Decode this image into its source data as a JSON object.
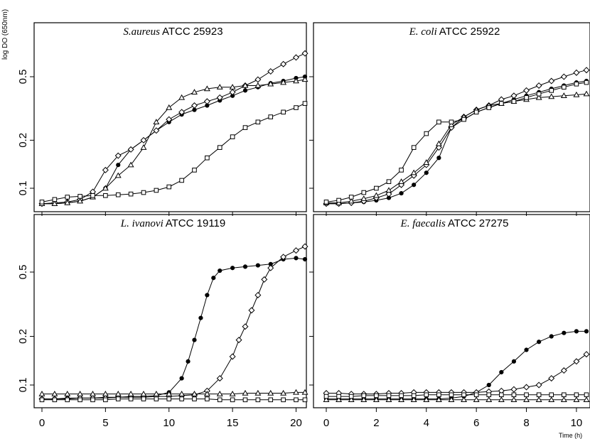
{
  "y_axis_label": "log DO (650nm)",
  "x_axis_unit_label": "Time (h)",
  "chart_data": [
    {
      "type": "line",
      "title_species": "S.aureus",
      "title_strain": "ATCC 25923",
      "y_scale": "log",
      "xlim": [
        0,
        20.7
      ],
      "ylim": [
        0.075,
        0.8
      ],
      "xticks": [
        0,
        5,
        10,
        15,
        20
      ],
      "yticks": [
        0.1,
        0.2,
        0.5
      ],
      "ytick_labels": [
        "0.1",
        "0.2",
        "0.5"
      ],
      "series": [
        {
          "marker": "filled-circle",
          "x": [
            0,
            1,
            2,
            3,
            4,
            5,
            6,
            7,
            8,
            9,
            10,
            11,
            12,
            13,
            14,
            15,
            16,
            17,
            18,
            19,
            20,
            20.7
          ],
          "y": [
            0.08,
            0.08,
            0.081,
            0.083,
            0.088,
            0.1,
            0.14,
            0.175,
            0.2,
            0.23,
            0.26,
            0.29,
            0.31,
            0.33,
            0.355,
            0.38,
            0.41,
            0.43,
            0.455,
            0.47,
            0.49,
            0.5
          ]
        },
        {
          "marker": "open-diamond",
          "x": [
            0,
            1,
            2,
            3,
            4,
            5,
            6,
            7,
            8,
            9,
            10,
            11,
            12,
            13,
            14,
            15,
            16,
            17,
            18,
            19,
            20,
            20.7
          ],
          "y": [
            0.08,
            0.081,
            0.082,
            0.085,
            0.095,
            0.13,
            0.16,
            0.175,
            0.2,
            0.23,
            0.27,
            0.3,
            0.33,
            0.35,
            0.37,
            0.4,
            0.44,
            0.48,
            0.54,
            0.6,
            0.66,
            0.7
          ]
        },
        {
          "marker": "open-triangle",
          "x": [
            0,
            1,
            2,
            3,
            4,
            5,
            6,
            7,
            8,
            9,
            10,
            11,
            12,
            13,
            14,
            15,
            16,
            17,
            18,
            19,
            20,
            20.7
          ],
          "y": [
            0.08,
            0.08,
            0.081,
            0.083,
            0.088,
            0.1,
            0.12,
            0.14,
            0.18,
            0.26,
            0.32,
            0.37,
            0.4,
            0.42,
            0.43,
            0.43,
            0.44,
            0.44,
            0.45,
            0.46,
            0.47,
            0.48
          ]
        },
        {
          "marker": "open-square",
          "x": [
            0,
            1,
            2,
            3,
            4,
            5,
            6,
            7,
            8,
            9,
            10,
            11,
            12,
            13,
            14,
            15,
            16,
            17,
            18,
            19,
            20,
            20.7
          ],
          "y": [
            0.082,
            0.085,
            0.088,
            0.089,
            0.09,
            0.09,
            0.091,
            0.092,
            0.094,
            0.097,
            0.102,
            0.112,
            0.13,
            0.155,
            0.18,
            0.21,
            0.24,
            0.26,
            0.28,
            0.3,
            0.32,
            0.34
          ]
        }
      ]
    },
    {
      "type": "line",
      "title_species": "E. coli",
      "title_strain": "ATCC 25922",
      "y_scale": "log",
      "xlim": [
        0,
        10.4
      ],
      "ylim": [
        0.075,
        0.8
      ],
      "xticks": [
        0,
        2,
        4,
        6,
        8,
        10
      ],
      "yticks": [
        0.1,
        0.2,
        0.5
      ],
      "ytick_labels": [
        "0.1",
        "0.2",
        "0.5"
      ],
      "series": [
        {
          "marker": "filled-circle",
          "x": [
            0,
            0.5,
            1,
            1.5,
            2,
            2.5,
            3,
            3.5,
            4,
            4.5,
            5,
            5.5,
            6,
            6.5,
            7,
            7.5,
            8,
            8.5,
            9,
            9.5,
            10,
            10.4
          ],
          "y": [
            0.08,
            0.08,
            0.081,
            0.082,
            0.084,
            0.087,
            0.093,
            0.105,
            0.125,
            0.155,
            0.24,
            0.27,
            0.3,
            0.32,
            0.34,
            0.36,
            0.38,
            0.4,
            0.42,
            0.44,
            0.46,
            0.47
          ]
        },
        {
          "marker": "open-diamond",
          "x": [
            0,
            0.5,
            1,
            1.5,
            2,
            2.5,
            3,
            3.5,
            4,
            4.5,
            5,
            5.5,
            6,
            6.5,
            7,
            7.5,
            8,
            8.5,
            9,
            9.5,
            10,
            10.4
          ],
          "y": [
            0.08,
            0.08,
            0.081,
            0.083,
            0.087,
            0.092,
            0.105,
            0.12,
            0.14,
            0.18,
            0.24,
            0.28,
            0.31,
            0.33,
            0.36,
            0.38,
            0.41,
            0.44,
            0.47,
            0.5,
            0.53,
            0.55
          ]
        },
        {
          "marker": "open-triangle",
          "x": [
            0,
            0.5,
            1,
            1.5,
            2,
            2.5,
            3,
            3.5,
            4,
            4.5,
            5,
            5.5,
            6,
            6.5,
            7,
            7.5,
            8,
            8.5,
            9,
            9.5,
            10,
            10.4
          ],
          "y": [
            0.081,
            0.081,
            0.083,
            0.086,
            0.09,
            0.097,
            0.11,
            0.125,
            0.145,
            0.19,
            0.25,
            0.28,
            0.31,
            0.33,
            0.34,
            0.35,
            0.36,
            0.37,
            0.375,
            0.38,
            0.385,
            0.39
          ]
        },
        {
          "marker": "open-square",
          "x": [
            0,
            0.5,
            1,
            1.5,
            2,
            2.5,
            3,
            3.5,
            4,
            4.5,
            5,
            5.5,
            6,
            6.5,
            7,
            7.5,
            8,
            8.5,
            9,
            9.5,
            10,
            10.4
          ],
          "y": [
            0.082,
            0.084,
            0.088,
            0.094,
            0.1,
            0.11,
            0.13,
            0.18,
            0.22,
            0.26,
            0.26,
            0.27,
            0.3,
            0.32,
            0.34,
            0.35,
            0.37,
            0.39,
            0.41,
            0.43,
            0.45,
            0.46
          ]
        }
      ]
    },
    {
      "type": "line",
      "title_species": "L. ivanovi",
      "title_strain": "ATCC 19119",
      "y_scale": "log",
      "xlim": [
        0,
        20.7
      ],
      "ylim": [
        0.075,
        0.8
      ],
      "xticks": [
        0,
        5,
        10,
        15,
        20
      ],
      "yticks": [
        0.1,
        0.2,
        0.5
      ],
      "ytick_labels": [
        "0.1",
        "0.2",
        "0.5"
      ],
      "series": [
        {
          "marker": "filled-circle",
          "x": [
            0,
            1,
            2,
            3,
            4,
            5,
            6,
            7,
            8,
            9,
            10,
            11,
            11.5,
            12,
            12.5,
            13,
            13.5,
            14,
            15,
            16,
            17,
            18,
            19,
            20,
            20.7
          ],
          "y": [
            0.082,
            0.082,
            0.083,
            0.083,
            0.083,
            0.084,
            0.084,
            0.085,
            0.085,
            0.086,
            0.09,
            0.11,
            0.14,
            0.19,
            0.26,
            0.36,
            0.46,
            0.51,
            0.53,
            0.54,
            0.55,
            0.56,
            0.6,
            0.61,
            0.6
          ]
        },
        {
          "marker": "open-diamond",
          "x": [
            0,
            1,
            2,
            3,
            4,
            5,
            6,
            7,
            8,
            9,
            10,
            11,
            12,
            13,
            14,
            15,
            15.5,
            16,
            16.5,
            17,
            17.5,
            18,
            19,
            20,
            20.7
          ],
          "y": [
            0.082,
            0.082,
            0.082,
            0.083,
            0.083,
            0.083,
            0.084,
            0.084,
            0.084,
            0.085,
            0.085,
            0.086,
            0.087,
            0.092,
            0.11,
            0.15,
            0.19,
            0.23,
            0.29,
            0.36,
            0.45,
            0.53,
            0.62,
            0.68,
            0.72
          ]
        },
        {
          "marker": "open-triangle",
          "x": [
            0,
            1,
            2,
            3,
            4,
            5,
            6,
            7,
            8,
            9,
            10,
            11,
            12,
            13,
            14,
            15,
            16,
            17,
            18,
            19,
            20,
            20.7
          ],
          "y": [
            0.088,
            0.088,
            0.088,
            0.088,
            0.088,
            0.088,
            0.088,
            0.088,
            0.088,
            0.088,
            0.088,
            0.088,
            0.088,
            0.088,
            0.088,
            0.088,
            0.089,
            0.089,
            0.089,
            0.089,
            0.09,
            0.09
          ]
        },
        {
          "marker": "open-square",
          "x": [
            0,
            1,
            2,
            3,
            4,
            5,
            6,
            7,
            8,
            9,
            10,
            11,
            12,
            13,
            14,
            15,
            16,
            17,
            18,
            19,
            20,
            20.7
          ],
          "y": [
            0.081,
            0.081,
            0.081,
            0.081,
            0.081,
            0.081,
            0.082,
            0.082,
            0.082,
            0.082,
            0.082,
            0.082,
            0.082,
            0.082,
            0.081,
            0.081,
            0.081,
            0.081,
            0.081,
            0.081,
            0.081,
            0.081
          ]
        }
      ]
    },
    {
      "type": "line",
      "title_species": "E. faecalis",
      "title_strain": "ATCC 27275",
      "y_scale": "log",
      "xlim": [
        0,
        10.4
      ],
      "ylim": [
        0.075,
        0.8
      ],
      "xticks": [
        0,
        2,
        4,
        6,
        8,
        10
      ],
      "yticks": [
        0.1,
        0.2,
        0.5
      ],
      "ytick_labels": [
        "0.1",
        "0.2",
        "0.5"
      ],
      "series": [
        {
          "marker": "filled-circle",
          "x": [
            0,
            0.5,
            1,
            1.5,
            2,
            2.5,
            3,
            3.5,
            4,
            4.5,
            5,
            5.5,
            6,
            6.5,
            7,
            7.5,
            8,
            8.5,
            9,
            9.5,
            10,
            10.4
          ],
          "y": [
            0.082,
            0.082,
            0.082,
            0.082,
            0.082,
            0.082,
            0.082,
            0.082,
            0.082,
            0.082,
            0.083,
            0.085,
            0.09,
            0.1,
            0.12,
            0.14,
            0.165,
            0.185,
            0.2,
            0.21,
            0.215,
            0.215
          ]
        },
        {
          "marker": "open-diamond",
          "x": [
            0,
            0.5,
            1,
            1.5,
            2,
            2.5,
            3,
            3.5,
            4,
            4.5,
            5,
            5.5,
            6,
            6.5,
            7,
            7.5,
            8,
            8.5,
            9,
            9.5,
            10,
            10.4
          ],
          "y": [
            0.089,
            0.089,
            0.088,
            0.088,
            0.088,
            0.089,
            0.089,
            0.09,
            0.09,
            0.09,
            0.09,
            0.09,
            0.09,
            0.091,
            0.092,
            0.094,
            0.097,
            0.1,
            0.11,
            0.123,
            0.14,
            0.155
          ]
        },
        {
          "marker": "open-triangle",
          "x": [
            0,
            0.5,
            1,
            1.5,
            2,
            2.5,
            3,
            3.5,
            4,
            4.5,
            5,
            5.5,
            6,
            6.5,
            7,
            7.5,
            8,
            8.5,
            9,
            9.5,
            10,
            10.4
          ],
          "y": [
            0.081,
            0.081,
            0.081,
            0.081,
            0.081,
            0.081,
            0.081,
            0.081,
            0.081,
            0.081,
            0.081,
            0.081,
            0.081,
            0.081,
            0.081,
            0.081,
            0.081,
            0.081,
            0.081,
            0.081,
            0.081,
            0.081
          ]
        },
        {
          "marker": "open-square",
          "x": [
            0,
            0.5,
            1,
            1.5,
            2,
            2.5,
            3,
            3.5,
            4,
            4.5,
            5,
            5.5,
            6,
            6.5,
            7,
            7.5,
            8,
            8.5,
            9,
            9.5,
            10,
            10.4
          ],
          "y": [
            0.085,
            0.085,
            0.085,
            0.086,
            0.086,
            0.086,
            0.086,
            0.086,
            0.087,
            0.087,
            0.087,
            0.087,
            0.087,
            0.087,
            0.087,
            0.087,
            0.087,
            0.087,
            0.087,
            0.087,
            0.087,
            0.087
          ]
        }
      ]
    }
  ]
}
